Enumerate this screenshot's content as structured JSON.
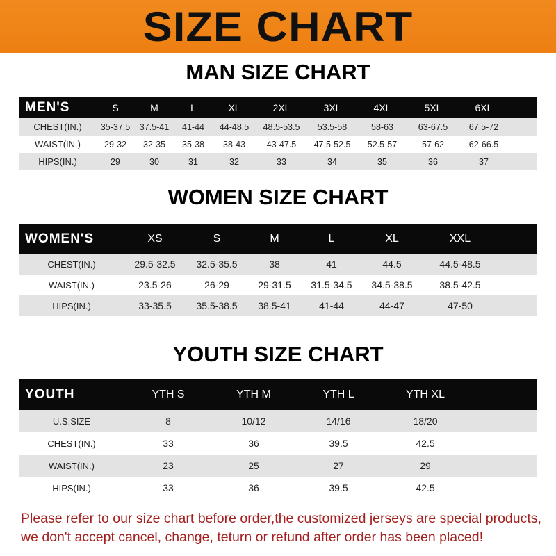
{
  "title": "SIZE CHART",
  "men": {
    "heading": "MAN SIZE CHART",
    "header": [
      "MEN'S",
      "S",
      "M",
      "L",
      "XL",
      "2XL",
      "3XL",
      "4XL",
      "5XL",
      "6XL"
    ],
    "rows": [
      [
        "CHEST(IN.)",
        "35-37.5",
        "37.5-41",
        "41-44",
        "44-48.5",
        "48.5-53.5",
        "53.5-58",
        "58-63",
        "63-67.5",
        "67.5-72"
      ],
      [
        "WAIST(IN.)",
        "29-32",
        "32-35",
        "35-38",
        "38-43",
        "43-47.5",
        "47.5-52.5",
        "52.5-57",
        "57-62",
        "62-66.5"
      ],
      [
        "HIPS(IN.)",
        "29",
        "30",
        "31",
        "32",
        "33",
        "34",
        "35",
        "36",
        "37"
      ]
    ]
  },
  "women": {
    "heading": "WOMEN SIZE CHART",
    "header": [
      "WOMEN'S",
      "XS",
      "S",
      "M",
      "L",
      "XL",
      "XXL"
    ],
    "rows": [
      [
        "CHEST(IN.)",
        "29.5-32.5",
        "32.5-35.5",
        "38",
        "41",
        "44.5",
        "44.5-48.5"
      ],
      [
        "WAIST(IN.)",
        "23.5-26",
        "26-29",
        "29-31.5",
        "31.5-34.5",
        "34.5-38.5",
        "38.5-42.5"
      ],
      [
        "HIPS(IN.)",
        "33-35.5",
        "35.5-38.5",
        "38.5-41",
        "41-44",
        "44-47",
        "47-50"
      ]
    ]
  },
  "youth": {
    "heading": "YOUTH SIZE CHART",
    "header": [
      "YOUTH",
      "YTH S",
      "YTH M",
      "YTH L",
      "YTH XL"
    ],
    "rows": [
      [
        "U.S.SIZE",
        "8",
        "10/12",
        "14/16",
        "18/20"
      ],
      [
        "CHEST(IN.)",
        "33",
        "36",
        "39.5",
        "42.5"
      ],
      [
        "WAIST(IN.)",
        "23",
        "25",
        "27",
        "29"
      ],
      [
        "HIPS(IN.)",
        "33",
        "36",
        "39.5",
        "42.5"
      ]
    ]
  },
  "note": {
    "line1": "Please refer to our size chart before order,the customized jerseys are special products,",
    "line2": "we don't accept cancel, change, teturn or refund after order has been placed!"
  },
  "colors": {
    "banner": "#ee7f12",
    "header_row": "#0a0a0a",
    "stripe": "#e3e3e3",
    "note": "#a3201e"
  }
}
